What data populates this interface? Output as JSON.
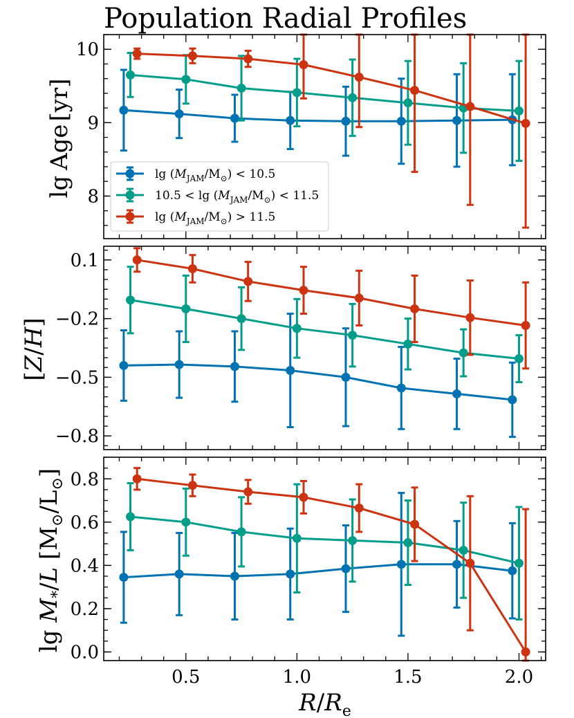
{
  "chart_data": {
    "type": "line",
    "title": "Population Radial Profiles",
    "xlabel": "R/R_e",
    "xlim": [
      0.13,
      2.12
    ],
    "xticks": [
      0.5,
      1.0,
      1.5,
      2.0
    ],
    "xtick_labels": [
      "0.5",
      "1.0",
      "1.5",
      "2.0"
    ],
    "series": [
      {
        "name": "lg(M_JAM/M_sun) < 10.5",
        "color": "#0072b2"
      },
      {
        "name": "10.5 < lg(M_JAM/M_sun) < 11.5",
        "color": "#009e8a"
      },
      {
        "name": "lg(M_JAM/M_sun) > 11.5",
        "color": "#cc3311"
      }
    ],
    "legend": {
      "location": "lower-left of top panel",
      "entries": [
        {
          "series": 0,
          "pre": "lg",
          "paren": "M",
          "sub": "JAM",
          "slash": "/M",
          "sub2": "⊙",
          "post": "< 10.5",
          "lead": ""
        },
        {
          "series": 1,
          "pre": "lg",
          "paren": "M",
          "sub": "JAM",
          "slash": "/M",
          "sub2": "⊙",
          "post": "< 11.5",
          "lead": "10.5 <"
        },
        {
          "series": 2,
          "pre": "lg",
          "paren": "M",
          "sub": "JAM",
          "slash": "/M",
          "sub2": "⊙",
          "post": "> 11.5",
          "lead": ""
        }
      ]
    },
    "panels": [
      {
        "id": "age",
        "ylabel": "lg Age [yr]",
        "ylim": [
          7.42,
          10.2
        ],
        "yticks": [
          8,
          9,
          10
        ],
        "ytick_labels": [
          "8",
          "9",
          "10"
        ],
        "series": [
          {
            "x": [
              0.22,
              0.47,
              0.72,
              0.97,
              1.22,
              1.47,
              1.72,
              1.97
            ],
            "y": [
              9.17,
              9.12,
              9.06,
              9.03,
              9.02,
              9.02,
              9.03,
              9.04
            ],
            "err": [
              0.55,
              0.33,
              0.32,
              0.39,
              0.47,
              0.58,
              0.63,
              0.62
            ]
          },
          {
            "x": [
              0.25,
              0.5,
              0.75,
              1.0,
              1.25,
              1.5,
              1.75,
              2.0
            ],
            "y": [
              9.65,
              9.59,
              9.47,
              9.41,
              9.34,
              9.27,
              9.2,
              9.16
            ],
            "err": [
              0.3,
              0.33,
              0.44,
              0.46,
              0.52,
              0.57,
              0.61,
              0.68
            ]
          },
          {
            "x": [
              0.28,
              0.53,
              0.78,
              1.03,
              1.28,
              1.53,
              1.78,
              2.03
            ],
            "y": [
              9.94,
              9.91,
              9.87,
              9.79,
              9.62,
              9.44,
              9.22,
              8.99
            ],
            "err": [
              0.07,
              0.1,
              0.11,
              0.46,
              0.68,
              1.11,
              1.34,
              1.42
            ]
          }
        ]
      },
      {
        "id": "metallicity",
        "ylabel": "[Z/H]",
        "ylim": [
          -0.87,
          0.17
        ],
        "yticks": [
          0.1,
          -0.2,
          -0.5,
          -0.8
        ],
        "ytick_labels": [
          "0.1",
          "−0.2",
          "−0.5",
          "−0.8"
        ],
        "series": [
          {
            "x": [
              0.22,
              0.47,
              0.72,
              0.97,
              1.22,
              1.47,
              1.72,
              1.97
            ],
            "y": [
              -0.44,
              -0.435,
              -0.445,
              -0.465,
              -0.5,
              -0.555,
              -0.585,
              -0.615
            ],
            "err": [
              0.18,
              0.17,
              0.18,
              0.29,
              0.25,
              0.21,
              0.18,
              0.19
            ]
          },
          {
            "x": [
              0.25,
              0.5,
              0.75,
              1.0,
              1.25,
              1.5,
              1.75,
              2.0
            ],
            "y": [
              -0.105,
              -0.15,
              -0.2,
              -0.25,
              -0.285,
              -0.33,
              -0.375,
              -0.405
            ],
            "err": [
              0.17,
              0.17,
              0.16,
              0.15,
              0.16,
              0.13,
              0.12,
              0.12
            ]
          },
          {
            "x": [
              0.28,
              0.53,
              0.78,
              1.03,
              1.28,
              1.53,
              1.78,
              2.03
            ],
            "y": [
              0.1,
              0.055,
              -0.01,
              -0.055,
              -0.095,
              -0.15,
              -0.195,
              -0.235
            ],
            "err": [
              0.06,
              0.07,
              0.1,
              0.12,
              0.14,
              0.17,
              0.19,
              0.22
            ]
          }
        ]
      },
      {
        "id": "mass-to-light",
        "ylabel": "lg M*/L [M⊙/L⊙]",
        "ylim": [
          -0.04,
          0.9
        ],
        "yticks": [
          0.0,
          0.2,
          0.4,
          0.6,
          0.8
        ],
        "ytick_labels": [
          "0.0",
          "0.2",
          "0.4",
          "0.6",
          "0.8"
        ],
        "series": [
          {
            "x": [
              0.22,
              0.47,
              0.72,
              0.97,
              1.22,
              1.47,
              1.72,
              1.97
            ],
            "y": [
              0.345,
              0.36,
              0.35,
              0.36,
              0.385,
              0.405,
              0.405,
              0.375
            ],
            "err": [
              0.21,
              0.19,
              0.2,
              0.21,
              0.2,
              0.33,
              0.2,
              0.22
            ]
          },
          {
            "x": [
              0.25,
              0.5,
              0.75,
              1.0,
              1.25,
              1.5,
              1.75,
              2.0
            ],
            "y": [
              0.625,
              0.6,
              0.555,
              0.525,
              0.515,
              0.505,
              0.47,
              0.41
            ],
            "err": [
              0.155,
              0.155,
              0.16,
              0.25,
              0.19,
              0.195,
              0.22,
              0.26
            ]
          },
          {
            "x": [
              0.28,
              0.53,
              0.78,
              1.03,
              1.28,
              1.53,
              1.78,
              2.03
            ],
            "y": [
              0.8,
              0.77,
              0.74,
              0.715,
              0.665,
              0.59,
              0.41,
              0.0
            ],
            "err": [
              0.05,
              0.05,
              0.055,
              0.075,
              0.11,
              0.17,
              0.31,
              0.66
            ]
          }
        ]
      }
    ]
  }
}
